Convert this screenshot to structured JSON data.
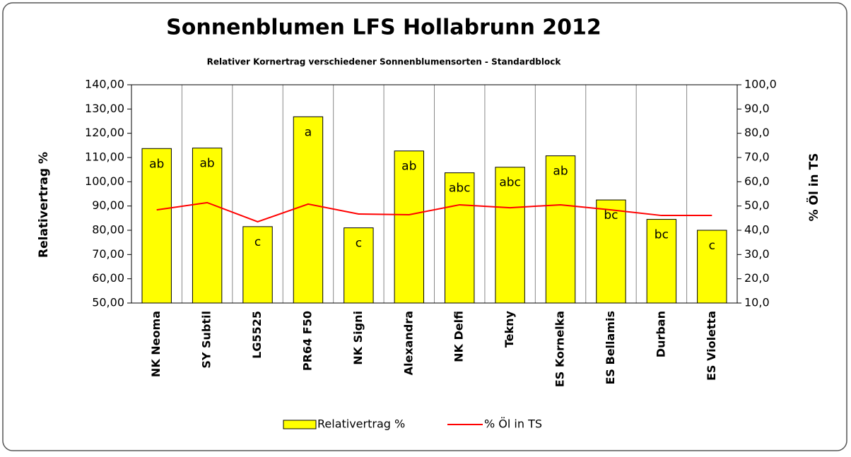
{
  "chart_data": {
    "type": "bar_line",
    "title": "Sonnenblumen LFS Hollabrunn 2012",
    "subtitle": "Relativer Kornertrag verschiedener Sonnenblumensorten - Standardblock",
    "y_label": "Relativertrag %",
    "y2_label": "% Öl in TS",
    "categories": [
      "NK Neoma",
      "SY Subtil",
      "LG5525",
      "PR64 F50",
      "NK Signi",
      "Alexandra",
      "NK Delfi",
      "Tekny",
      "ES Kornelka",
      "ES Bellamis",
      "Durban",
      "ES Violetta"
    ],
    "series": [
      {
        "name": "Relativertrag %",
        "type": "bar",
        "color": "#ffff00",
        "values": [
          113.7,
          113.9,
          81.5,
          126.8,
          81,
          112.7,
          103.7,
          106,
          110.7,
          92.5,
          84.5,
          80
        ]
      },
      {
        "name": "% Öl in TS",
        "type": "line",
        "axis": "y2",
        "color": "#ff0000",
        "values": [
          48.4,
          51.4,
          43.5,
          50.8,
          46.7,
          46.4,
          50.5,
          49.3,
          50.5,
          48.4,
          46.1,
          46.1
        ]
      }
    ],
    "annotations": [
      "ab",
      "ab",
      "c",
      "a",
      "c",
      "ab",
      "abc",
      "abc",
      "ab",
      "bc",
      "bc",
      "c"
    ],
    "ylim": [
      50,
      140
    ],
    "yticks": [
      {
        "value": 50,
        "label": "50,00"
      },
      {
        "value": 60,
        "label": "60,00"
      },
      {
        "value": 70,
        "label": "70,00"
      },
      {
        "value": 80,
        "label": "80,00"
      },
      {
        "value": 90,
        "label": "90,00"
      },
      {
        "value": 100,
        "label": "100,00"
      },
      {
        "value": 110,
        "label": "110,00"
      },
      {
        "value": 120,
        "label": "120,00"
      },
      {
        "value": 130,
        "label": "130,00"
      },
      {
        "value": 140,
        "label": "140,00"
      }
    ],
    "y2lim": [
      10,
      100
    ],
    "y2ticks": [
      {
        "value": 10,
        "label": "10,0"
      },
      {
        "value": 20,
        "label": "20,0"
      },
      {
        "value": 30,
        "label": "30,0"
      },
      {
        "value": 40,
        "label": "40,0"
      },
      {
        "value": 50,
        "label": "50,0"
      },
      {
        "value": 60,
        "label": "60,0"
      },
      {
        "value": 70,
        "label": "70,0"
      },
      {
        "value": 80,
        "label": "80,0"
      },
      {
        "value": 90,
        "label": "90,0"
      },
      {
        "value": 100,
        "label": "100,0"
      }
    ],
    "grid": "x",
    "legend": "bottom"
  }
}
